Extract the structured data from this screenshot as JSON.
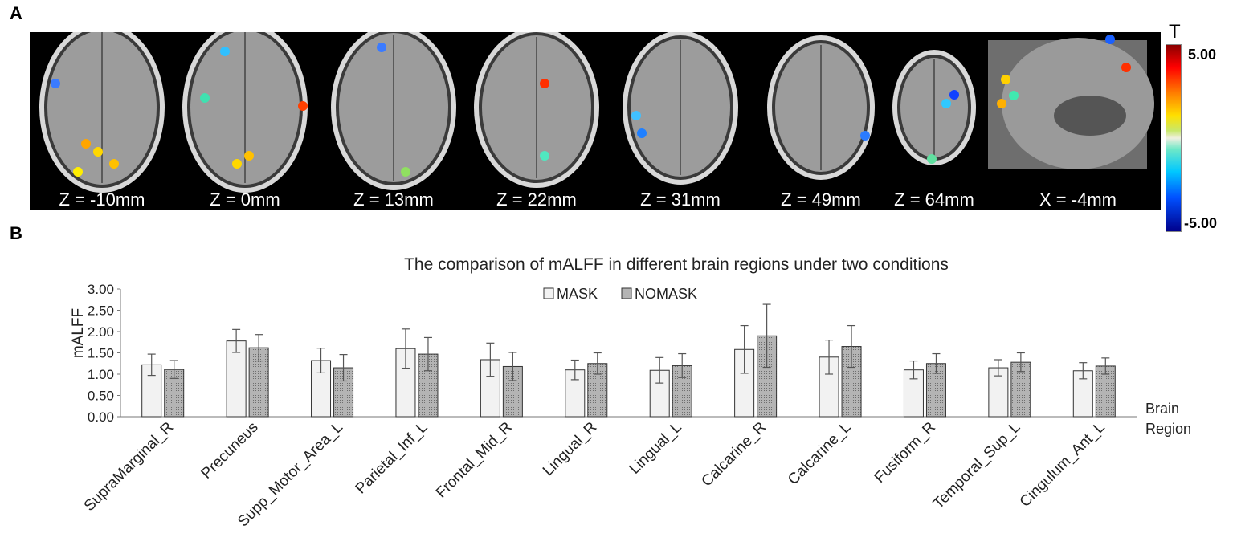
{
  "panels": {
    "a": "A",
    "b": "B"
  },
  "brain_strip": {
    "slices": [
      {
        "label": "Z = -10mm",
        "view": "axial"
      },
      {
        "label": "Z = 0mm",
        "view": "axial"
      },
      {
        "label": "Z = 13mm",
        "view": "axial"
      },
      {
        "label": "Z = 22mm",
        "view": "axial"
      },
      {
        "label": "Z = 31mm",
        "view": "axial"
      },
      {
        "label": "Z = 49mm",
        "view": "axial"
      },
      {
        "label": "Z = 64mm",
        "view": "axial"
      },
      {
        "label": "X = -4mm",
        "view": "sagittal"
      }
    ],
    "colorbar": {
      "title": "T",
      "max_label": "5.00",
      "min_label": "-5.00"
    }
  },
  "chart_data": {
    "type": "bar",
    "title": "The comparison of mALFF in different brain regions under two conditions",
    "ylabel": "mALFF",
    "xlabel": "Brain Region",
    "xlabel_lines": [
      "Brain",
      "Region"
    ],
    "ylim": [
      0,
      3
    ],
    "yticks": [
      "0.00",
      "0.50",
      "1.00",
      "1.50",
      "2.00",
      "2.50",
      "3.00"
    ],
    "legend_position": "top-center",
    "categories": [
      "SupraMarginal_R",
      "Precuneus",
      "Supp_Motor_Area_L",
      "Parietal_Inf_L",
      "Frontal_Mid_R",
      "Lingual_R",
      "Lingual_L",
      "Calcarine_R",
      "Calcarine_L",
      "Fusiform_R",
      "Temporal_Sup_L",
      "Cingulum_Ant_L"
    ],
    "series": [
      {
        "name": "MASK",
        "fill": "#f2f2f2",
        "values": [
          1.22,
          1.78,
          1.32,
          1.6,
          1.34,
          1.1,
          1.09,
          1.58,
          1.4,
          1.1,
          1.15,
          1.08
        ],
        "errors": [
          0.25,
          0.27,
          0.29,
          0.46,
          0.39,
          0.23,
          0.3,
          0.56,
          0.4,
          0.21,
          0.19,
          0.19
        ]
      },
      {
        "name": "NOMASK",
        "fill": "#b4b4b4",
        "values": [
          1.11,
          1.62,
          1.15,
          1.47,
          1.18,
          1.25,
          1.2,
          1.9,
          1.65,
          1.25,
          1.28,
          1.19
        ],
        "errors": [
          0.21,
          0.31,
          0.31,
          0.39,
          0.33,
          0.25,
          0.28,
          0.74,
          0.49,
          0.23,
          0.22,
          0.19
        ]
      }
    ]
  }
}
